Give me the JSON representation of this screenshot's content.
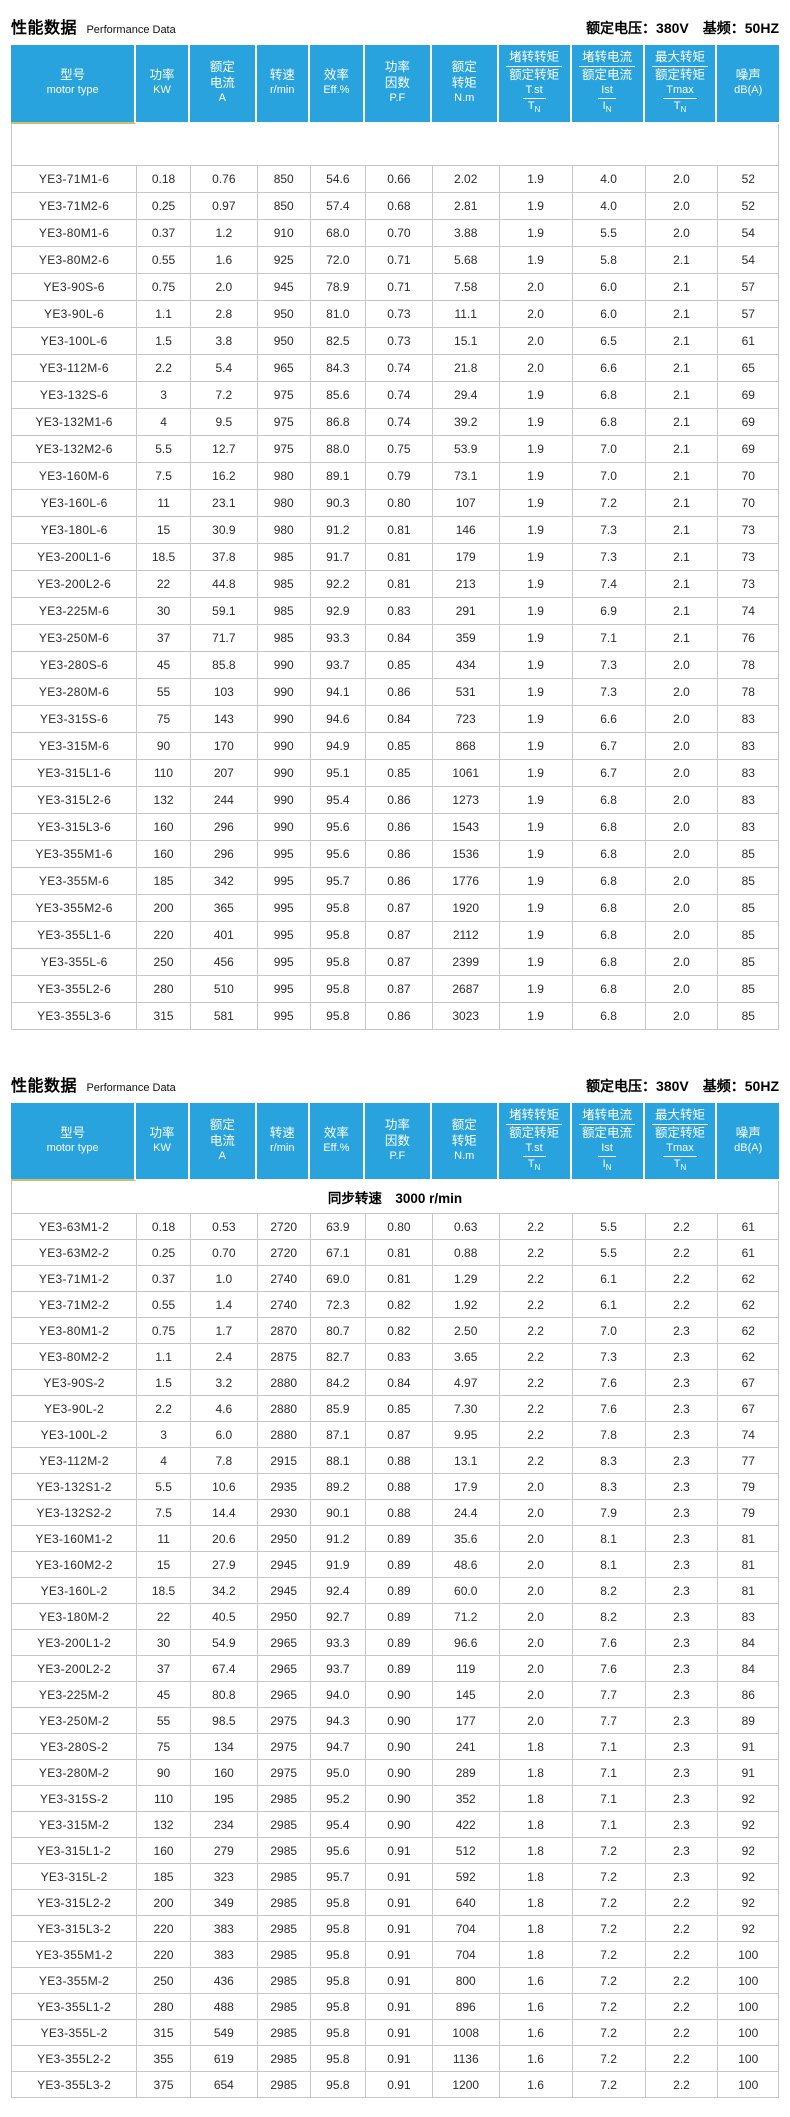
{
  "page": {
    "section_title_zh": "性能数据",
    "section_title_en": "Performance Data",
    "rated_info": "额定电压：380V　基频：50HZ"
  },
  "columns": [
    {
      "type": "text",
      "lines": [
        "型号",
        "motor type"
      ]
    },
    {
      "type": "text",
      "lines": [
        "功率",
        "KW"
      ]
    },
    {
      "type": "text",
      "lines": [
        "额定",
        "电流",
        "A"
      ]
    },
    {
      "type": "text",
      "lines": [
        "转速",
        "r/min"
      ]
    },
    {
      "type": "text",
      "lines": [
        "效率",
        "Eff.%"
      ]
    },
    {
      "type": "text",
      "lines": [
        "功率",
        "因数",
        "P.F"
      ]
    },
    {
      "type": "text",
      "lines": [
        "额定",
        "转矩",
        "N.m"
      ]
    },
    {
      "type": "fraction",
      "zh_top": "堵转转矩",
      "zh_bot": "额定转矩",
      "sym_top": "T.st",
      "sym_bot": "T",
      "sym_sub": "N"
    },
    {
      "type": "fraction",
      "zh_top": "堵转电流",
      "zh_bot": "额定电流",
      "sym_top": "Ist",
      "sym_bot": "I",
      "sym_sub": "N"
    },
    {
      "type": "fraction",
      "zh_top": "最大转矩",
      "zh_bot": "额定转矩",
      "sym_top": "Tmax",
      "sym_bot": "T",
      "sym_sub": "N"
    },
    {
      "type": "text",
      "lines": [
        "噪声",
        "dB(A)"
      ]
    }
  ],
  "tables": [
    {
      "subheader": "",
      "rows": [
        [
          "YE3-71M1-6",
          "0.18",
          "0.76",
          "850",
          "54.6",
          "0.66",
          "2.02",
          "1.9",
          "4.0",
          "2.0",
          "52"
        ],
        [
          "YE3-71M2-6",
          "0.25",
          "0.97",
          "850",
          "57.4",
          "0.68",
          "2.81",
          "1.9",
          "4.0",
          "2.0",
          "52"
        ],
        [
          "YE3-80M1-6",
          "0.37",
          "1.2",
          "910",
          "68.0",
          "0.70",
          "3.88",
          "1.9",
          "5.5",
          "2.0",
          "54"
        ],
        [
          "YE3-80M2-6",
          "0.55",
          "1.6",
          "925",
          "72.0",
          "0.71",
          "5.68",
          "1.9",
          "5.8",
          "2.1",
          "54"
        ],
        [
          "YE3-90S-6",
          "0.75",
          "2.0",
          "945",
          "78.9",
          "0.71",
          "7.58",
          "2.0",
          "6.0",
          "2.1",
          "57"
        ],
        [
          "YE3-90L-6",
          "1.1",
          "2.8",
          "950",
          "81.0",
          "0.73",
          "11.1",
          "2.0",
          "6.0",
          "2.1",
          "57"
        ],
        [
          "YE3-100L-6",
          "1.5",
          "3.8",
          "950",
          "82.5",
          "0.73",
          "15.1",
          "2.0",
          "6.5",
          "2.1",
          "61"
        ],
        [
          "YE3-112M-6",
          "2.2",
          "5.4",
          "965",
          "84.3",
          "0.74",
          "21.8",
          "2.0",
          "6.6",
          "2.1",
          "65"
        ],
        [
          "YE3-132S-6",
          "3",
          "7.2",
          "975",
          "85.6",
          "0.74",
          "29.4",
          "1.9",
          "6.8",
          "2.1",
          "69"
        ],
        [
          "YE3-132M1-6",
          "4",
          "9.5",
          "975",
          "86.8",
          "0.74",
          "39.2",
          "1.9",
          "6.8",
          "2.1",
          "69"
        ],
        [
          "YE3-132M2-6",
          "5.5",
          "12.7",
          "975",
          "88.0",
          "0.75",
          "53.9",
          "1.9",
          "7.0",
          "2.1",
          "69"
        ],
        [
          "YE3-160M-6",
          "7.5",
          "16.2",
          "980",
          "89.1",
          "0.79",
          "73.1",
          "1.9",
          "7.0",
          "2.1",
          "70"
        ],
        [
          "YE3-160L-6",
          "11",
          "23.1",
          "980",
          "90.3",
          "0.80",
          "107",
          "1.9",
          "7.2",
          "2.1",
          "70"
        ],
        [
          "YE3-180L-6",
          "15",
          "30.9",
          "980",
          "91.2",
          "0.81",
          "146",
          "1.9",
          "7.3",
          "2.1",
          "73"
        ],
        [
          "YE3-200L1-6",
          "18.5",
          "37.8",
          "985",
          "91.7",
          "0.81",
          "179",
          "1.9",
          "7.3",
          "2.1",
          "73"
        ],
        [
          "YE3-200L2-6",
          "22",
          "44.8",
          "985",
          "92.2",
          "0.81",
          "213",
          "1.9",
          "7.4",
          "2.1",
          "73"
        ],
        [
          "YE3-225M-6",
          "30",
          "59.1",
          "985",
          "92.9",
          "0.83",
          "291",
          "1.9",
          "6.9",
          "2.1",
          "74"
        ],
        [
          "YE3-250M-6",
          "37",
          "71.7",
          "985",
          "93.3",
          "0.84",
          "359",
          "1.9",
          "7.1",
          "2.1",
          "76"
        ],
        [
          "YE3-280S-6",
          "45",
          "85.8",
          "990",
          "93.7",
          "0.85",
          "434",
          "1.9",
          "7.3",
          "2.0",
          "78"
        ],
        [
          "YE3-280M-6",
          "55",
          "103",
          "990",
          "94.1",
          "0.86",
          "531",
          "1.9",
          "7.3",
          "2.0",
          "78"
        ],
        [
          "YE3-315S-6",
          "75",
          "143",
          "990",
          "94.6",
          "0.84",
          "723",
          "1.9",
          "6.6",
          "2.0",
          "83"
        ],
        [
          "YE3-315M-6",
          "90",
          "170",
          "990",
          "94.9",
          "0.85",
          "868",
          "1.9",
          "6.7",
          "2.0",
          "83"
        ],
        [
          "YE3-315L1-6",
          "110",
          "207",
          "990",
          "95.1",
          "0.85",
          "1061",
          "1.9",
          "6.7",
          "2.0",
          "83"
        ],
        [
          "YE3-315L2-6",
          "132",
          "244",
          "990",
          "95.4",
          "0.86",
          "1273",
          "1.9",
          "6.8",
          "2.0",
          "83"
        ],
        [
          "YE3-315L3-6",
          "160",
          "296",
          "990",
          "95.6",
          "0.86",
          "1543",
          "1.9",
          "6.8",
          "2.0",
          "83"
        ],
        [
          "YE3-355M1-6",
          "160",
          "296",
          "995",
          "95.6",
          "0.86",
          "1536",
          "1.9",
          "6.8",
          "2.0",
          "85"
        ],
        [
          "YE3-355M-6",
          "185",
          "342",
          "995",
          "95.7",
          "0.86",
          "1776",
          "1.9",
          "6.8",
          "2.0",
          "85"
        ],
        [
          "YE3-355M2-6",
          "200",
          "365",
          "995",
          "95.8",
          "0.87",
          "1920",
          "1.9",
          "6.8",
          "2.0",
          "85"
        ],
        [
          "YE3-355L1-6",
          "220",
          "401",
          "995",
          "95.8",
          "0.87",
          "2112",
          "1.9",
          "6.8",
          "2.0",
          "85"
        ],
        [
          "YE3-355L-6",
          "250",
          "456",
          "995",
          "95.8",
          "0.87",
          "2399",
          "1.9",
          "6.8",
          "2.0",
          "85"
        ],
        [
          "YE3-355L2-6",
          "280",
          "510",
          "995",
          "95.8",
          "0.87",
          "2687",
          "1.9",
          "6.8",
          "2.0",
          "85"
        ],
        [
          "YE3-355L3-6",
          "315",
          "581",
          "995",
          "95.8",
          "0.86",
          "3023",
          "1.9",
          "6.8",
          "2.0",
          "85"
        ]
      ]
    },
    {
      "subheader": "同步转速　3000 r/min",
      "rows": [
        [
          "YE3-63M1-2",
          "0.18",
          "0.53",
          "2720",
          "63.9",
          "0.80",
          "0.63",
          "2.2",
          "5.5",
          "2.2",
          "61"
        ],
        [
          "YE3-63M2-2",
          "0.25",
          "0.70",
          "2720",
          "67.1",
          "0.81",
          "0.88",
          "2.2",
          "5.5",
          "2.2",
          "61"
        ],
        [
          "YE3-71M1-2",
          "0.37",
          "1.0",
          "2740",
          "69.0",
          "0.81",
          "1.29",
          "2.2",
          "6.1",
          "2.2",
          "62"
        ],
        [
          "YE3-71M2-2",
          "0.55",
          "1.4",
          "2740",
          "72.3",
          "0.82",
          "1.92",
          "2.2",
          "6.1",
          "2.2",
          "62"
        ],
        [
          "YE3-80M1-2",
          "0.75",
          "1.7",
          "2870",
          "80.7",
          "0.82",
          "2.50",
          "2.2",
          "7.0",
          "2.3",
          "62"
        ],
        [
          "YE3-80M2-2",
          "1.1",
          "2.4",
          "2875",
          "82.7",
          "0.83",
          "3.65",
          "2.2",
          "7.3",
          "2.3",
          "62"
        ],
        [
          "YE3-90S-2",
          "1.5",
          "3.2",
          "2880",
          "84.2",
          "0.84",
          "4.97",
          "2.2",
          "7.6",
          "2.3",
          "67"
        ],
        [
          "YE3-90L-2",
          "2.2",
          "4.6",
          "2880",
          "85.9",
          "0.85",
          "7.30",
          "2.2",
          "7.6",
          "2.3",
          "67"
        ],
        [
          "YE3-100L-2",
          "3",
          "6.0",
          "2880",
          "87.1",
          "0.87",
          "9.95",
          "2.2",
          "7.8",
          "2.3",
          "74"
        ],
        [
          "YE3-112M-2",
          "4",
          "7.8",
          "2915",
          "88.1",
          "0.88",
          "13.1",
          "2.2",
          "8.3",
          "2.3",
          "77"
        ],
        [
          "YE3-132S1-2",
          "5.5",
          "10.6",
          "2935",
          "89.2",
          "0.88",
          "17.9",
          "2.0",
          "8.3",
          "2.3",
          "79"
        ],
        [
          "YE3-132S2-2",
          "7.5",
          "14.4",
          "2930",
          "90.1",
          "0.88",
          "24.4",
          "2.0",
          "7.9",
          "2.3",
          "79"
        ],
        [
          "YE3-160M1-2",
          "11",
          "20.6",
          "2950",
          "91.2",
          "0.89",
          "35.6",
          "2.0",
          "8.1",
          "2.3",
          "81"
        ],
        [
          "YE3-160M2-2",
          "15",
          "27.9",
          "2945",
          "91.9",
          "0.89",
          "48.6",
          "2.0",
          "8.1",
          "2.3",
          "81"
        ],
        [
          "YE3-160L-2",
          "18.5",
          "34.2",
          "2945",
          "92.4",
          "0.89",
          "60.0",
          "2.0",
          "8.2",
          "2.3",
          "81"
        ],
        [
          "YE3-180M-2",
          "22",
          "40.5",
          "2950",
          "92.7",
          "0.89",
          "71.2",
          "2.0",
          "8.2",
          "2.3",
          "83"
        ],
        [
          "YE3-200L1-2",
          "30",
          "54.9",
          "2965",
          "93.3",
          "0.89",
          "96.6",
          "2.0",
          "7.6",
          "2.3",
          "84"
        ],
        [
          "YE3-200L2-2",
          "37",
          "67.4",
          "2965",
          "93.7",
          "0.89",
          "119",
          "2.0",
          "7.6",
          "2.3",
          "84"
        ],
        [
          "YE3-225M-2",
          "45",
          "80.8",
          "2965",
          "94.0",
          "0.90",
          "145",
          "2.0",
          "7.7",
          "2.3",
          "86"
        ],
        [
          "YE3-250M-2",
          "55",
          "98.5",
          "2975",
          "94.3",
          "0.90",
          "177",
          "2.0",
          "7.7",
          "2.3",
          "89"
        ],
        [
          "YE3-280S-2",
          "75",
          "134",
          "2975",
          "94.7",
          "0.90",
          "241",
          "1.8",
          "7.1",
          "2.3",
          "91"
        ],
        [
          "YE3-280M-2",
          "90",
          "160",
          "2975",
          "95.0",
          "0.90",
          "289",
          "1.8",
          "7.1",
          "2.3",
          "91"
        ],
        [
          "YE3-315S-2",
          "110",
          "195",
          "2985",
          "95.2",
          "0.90",
          "352",
          "1.8",
          "7.1",
          "2.3",
          "92"
        ],
        [
          "YE3-315M-2",
          "132",
          "234",
          "2985",
          "95.4",
          "0.90",
          "422",
          "1.8",
          "7.1",
          "2.3",
          "92"
        ],
        [
          "YE3-315L1-2",
          "160",
          "279",
          "2985",
          "95.6",
          "0.91",
          "512",
          "1.8",
          "7.2",
          "2.3",
          "92"
        ],
        [
          "YE3-315L-2",
          "185",
          "323",
          "2985",
          "95.7",
          "0.91",
          "592",
          "1.8",
          "7.2",
          "2.3",
          "92"
        ],
        [
          "YE3-315L2-2",
          "200",
          "349",
          "2985",
          "95.8",
          "0.91",
          "640",
          "1.8",
          "7.2",
          "2.2",
          "92"
        ],
        [
          "YE3-315L3-2",
          "220",
          "383",
          "2985",
          "95.8",
          "0.91",
          "704",
          "1.8",
          "7.2",
          "2.2",
          "92"
        ],
        [
          "YE3-355M1-2",
          "220",
          "383",
          "2985",
          "95.8",
          "0.91",
          "704",
          "1.8",
          "7.2",
          "2.2",
          "100"
        ],
        [
          "YE3-355M-2",
          "250",
          "436",
          "2985",
          "95.8",
          "0.91",
          "800",
          "1.6",
          "7.2",
          "2.2",
          "100"
        ],
        [
          "YE3-355L1-2",
          "280",
          "488",
          "2985",
          "95.8",
          "0.91",
          "896",
          "1.6",
          "7.2",
          "2.2",
          "100"
        ],
        [
          "YE3-355L-2",
          "315",
          "549",
          "2985",
          "95.8",
          "0.91",
          "1008",
          "1.6",
          "7.2",
          "2.2",
          "100"
        ],
        [
          "YE3-355L2-2",
          "355",
          "619",
          "2985",
          "95.8",
          "0.91",
          "1136",
          "1.6",
          "7.2",
          "2.2",
          "100"
        ],
        [
          "YE3-355L3-2",
          "375",
          "654",
          "2985",
          "95.8",
          "0.91",
          "1200",
          "1.6",
          "7.2",
          "2.2",
          "100"
        ]
      ]
    }
  ]
}
